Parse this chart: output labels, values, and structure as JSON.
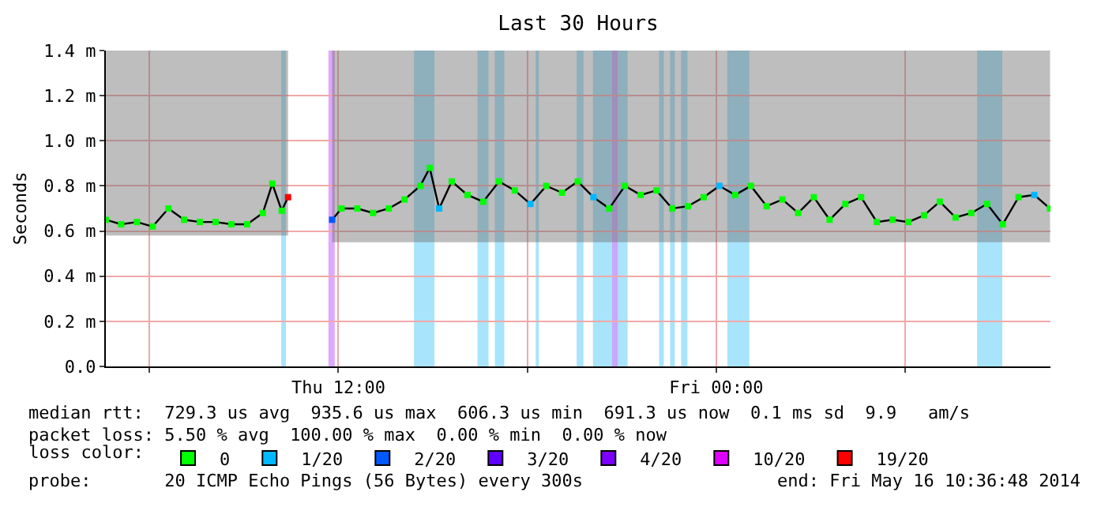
{
  "chart_data": {
    "type": "line",
    "title": "Last 30 Hours",
    "ylabel": "Seconds",
    "x": [
      "2014-05-15T04:37",
      "2014-05-15T05:06",
      "2014-05-15T05:36",
      "2014-05-15T06:06",
      "2014-05-15T06:36",
      "2014-05-15T07:06",
      "2014-05-15T07:36",
      "2014-05-15T08:06",
      "2014-05-15T08:36",
      "2014-05-15T09:06",
      "2014-05-15T09:36",
      "2014-05-15T09:54",
      "2014-05-15T10:12",
      "2014-05-15T10:24",
      "2014-05-15T11:06",
      "2014-05-15T11:48",
      "2014-05-15T12:06",
      "2014-05-15T12:36",
      "2014-05-15T13:06",
      "2014-05-15T13:36",
      "2014-05-15T14:06",
      "2014-05-15T14:36",
      "2014-05-15T14:54",
      "2014-05-15T15:12",
      "2014-05-15T15:36",
      "2014-05-15T16:06",
      "2014-05-15T16:36",
      "2014-05-15T17:06",
      "2014-05-15T17:36",
      "2014-05-15T18:06",
      "2014-05-15T18:36",
      "2014-05-15T19:06",
      "2014-05-15T19:36",
      "2014-05-15T20:06",
      "2014-05-15T20:36",
      "2014-05-15T21:06",
      "2014-05-15T21:36",
      "2014-05-15T22:06",
      "2014-05-15T22:36",
      "2014-05-15T23:06",
      "2014-05-15T23:36",
      "2014-05-16T00:06",
      "2014-05-16T00:36",
      "2014-05-16T01:06",
      "2014-05-16T01:36",
      "2014-05-16T02:06",
      "2014-05-16T02:36",
      "2014-05-16T03:06",
      "2014-05-16T03:36",
      "2014-05-16T04:06",
      "2014-05-16T04:36",
      "2014-05-16T05:06",
      "2014-05-16T05:36",
      "2014-05-16T06:06",
      "2014-05-16T06:36",
      "2014-05-16T07:06",
      "2014-05-16T07:36",
      "2014-05-16T08:06",
      "2014-05-16T08:36",
      "2014-05-16T09:06",
      "2014-05-16T09:36",
      "2014-05-16T10:06",
      "2014-05-16T10:36"
    ],
    "series": [
      {
        "color": "#000000",
        "values": [
          0.65,
          0.63,
          0.64,
          0.62,
          0.7,
          0.65,
          0.64,
          0.64,
          0.63,
          0.63,
          0.68,
          0.81,
          0.69,
          0.75,
          null,
          0.65,
          0.7,
          0.7,
          0.68,
          0.7,
          0.74,
          0.8,
          0.88,
          0.7,
          0.82,
          0.76,
          0.73,
          0.82,
          0.78,
          0.72,
          0.8,
          0.77,
          0.82,
          0.75,
          0.7,
          0.8,
          0.76,
          0.78,
          0.7,
          0.71,
          0.75,
          0.8,
          0.76,
          0.8,
          0.71,
          0.74,
          0.68,
          0.75,
          0.65,
          0.72,
          0.75,
          0.64,
          0.65,
          0.64,
          0.67,
          0.73,
          0.66,
          0.68,
          0.72,
          0.63,
          0.75,
          0.76,
          0.7
        ],
        "colors": [
          "#00ff00",
          "#00ff00",
          "#00ff00",
          "#00ff00",
          "#00ff00",
          "#00ff00",
          "#00ff00",
          "#00ff00",
          "#00ff00",
          "#00ff00",
          "#00ff00",
          "#00ff00",
          "#00ff00",
          "#ff0000",
          null,
          "#0059ff",
          "#00ff00",
          "#00ff00",
          "#00ff00",
          "#00ff00",
          "#00ff00",
          "#00ff00",
          "#00ff00",
          "#00b8ff",
          "#00ff00",
          "#00ff00",
          "#00ff00",
          "#00ff00",
          "#00ff00",
          "#00b8ff",
          "#00ff00",
          "#00ff00",
          "#00ff00",
          "#00b8ff",
          "#00ff00",
          "#00ff00",
          "#00ff00",
          "#00ff00",
          "#00ff00",
          "#00ff00",
          "#00ff00",
          "#00b8ff",
          "#00ff00",
          "#00ff00",
          "#00ff00",
          "#00ff00",
          "#00ff00",
          "#00ff00",
          "#00ff00",
          "#00ff00",
          "#00ff00",
          "#00ff00",
          "#00ff00",
          "#00ff00",
          "#00ff00",
          "#00ff00",
          "#00ff00",
          "#00ff00",
          "#00ff00",
          "#00ff00",
          "#00ff00",
          "#00b8ff",
          "#00ff00"
        ],
        "lower": [
          0.58,
          0.58,
          0.58,
          0.58,
          0.58,
          0.58,
          0.58,
          0.58,
          0.58,
          0.58,
          0.58,
          0.58,
          0.58,
          0.58,
          null,
          0.55,
          0.55,
          0.55,
          0.55,
          0.55,
          0.55,
          0.55,
          0.55,
          0.55,
          0.55,
          0.55,
          0.55,
          0.55,
          0.55,
          0.55,
          0.55,
          0.55,
          0.55,
          0.55,
          0.55,
          0.55,
          0.55,
          0.55,
          0.55,
          0.55,
          0.55,
          0.55,
          0.55,
          0.55,
          0.55,
          0.55,
          0.55,
          0.55,
          0.55,
          0.55,
          0.55,
          0.55,
          0.55,
          0.55,
          0.55,
          0.55,
          0.55,
          0.55,
          0.55,
          0.55,
          0.55,
          0.55,
          0.55
        ],
        "upper": [
          1.4,
          1.4,
          1.4,
          1.4,
          1.4,
          1.4,
          1.4,
          1.4,
          1.4,
          1.4,
          1.4,
          1.4,
          1.4,
          1.4,
          null,
          1.4,
          1.4,
          1.4,
          1.4,
          1.4,
          1.4,
          1.4,
          1.4,
          1.4,
          1.4,
          1.4,
          1.4,
          1.4,
          1.4,
          1.4,
          1.4,
          1.4,
          1.4,
          1.4,
          1.4,
          1.4,
          1.4,
          1.4,
          1.4,
          1.4,
          1.4,
          1.4,
          1.4,
          1.4,
          1.4,
          1.4,
          1.4,
          1.4,
          1.4,
          1.4,
          1.4,
          1.4,
          1.4,
          1.4,
          1.4,
          1.4,
          1.4,
          1.4,
          1.4,
          1.4,
          1.4,
          1.4,
          1.4
        ]
      },
      {
        "type": "scatter",
        "name": "0",
        "color": "#00ff00",
        "values": [
          null,
          null,
          null,
          null,
          null,
          null,
          null,
          null,
          null,
          null,
          null,
          null,
          null,
          null,
          null,
          null,
          null,
          null,
          null,
          null,
          null,
          null,
          null,
          null,
          null,
          null,
          null,
          null,
          null,
          null,
          null,
          null,
          null,
          null,
          null,
          null,
          null,
          null,
          null,
          null,
          null,
          null,
          null,
          null,
          null,
          null,
          null,
          null,
          null,
          null,
          null,
          null,
          null,
          null,
          null,
          null,
          null,
          null,
          null,
          null,
          null,
          null,
          null
        ]
      },
      {
        "type": "scatter",
        "name": "1/20",
        "color": "#00b8ff",
        "values": [
          null,
          null,
          null,
          null,
          null,
          null,
          null,
          null,
          null,
          null,
          null,
          null,
          null,
          null,
          null,
          null,
          null,
          null,
          null,
          null,
          null,
          null,
          null,
          null,
          null,
          null,
          null,
          null,
          null,
          null,
          null,
          null,
          null,
          null,
          null,
          null,
          null,
          null,
          null,
          null,
          null,
          null,
          null,
          null,
          null,
          null,
          null,
          null,
          null,
          null,
          null,
          null,
          null,
          null,
          null,
          null,
          null,
          null,
          null,
          null,
          null,
          null,
          null
        ]
      },
      {
        "type": "scatter",
        "name": "2/20",
        "color": "#0059ff",
        "values": [
          null,
          null,
          null,
          null,
          null,
          null,
          null,
          null,
          null,
          null,
          null,
          null,
          null,
          null,
          null,
          null,
          null,
          null,
          null,
          null,
          null,
          null,
          null,
          null,
          null,
          null,
          null,
          null,
          null,
          null,
          null,
          null,
          null,
          null,
          null,
          null,
          null,
          null,
          null,
          null,
          null,
          null,
          null,
          null,
          null,
          null,
          null,
          null,
          null,
          null,
          null,
          null,
          null,
          null,
          null,
          null,
          null,
          null,
          null,
          null,
          null,
          null,
          null
        ]
      },
      {
        "type": "scatter",
        "name": "3/20",
        "color": "#5e00ff",
        "values": [
          null,
          null,
          null,
          null,
          null,
          null,
          null,
          null,
          null,
          null,
          null,
          null,
          null,
          null,
          null,
          null,
          null,
          null,
          null,
          null,
          null,
          null,
          null,
          null,
          null,
          null,
          null,
          null,
          null,
          null,
          null,
          null,
          null,
          null,
          null,
          null,
          null,
          null,
          null,
          null,
          null,
          null,
          null,
          null,
          null,
          null,
          null,
          null,
          null,
          null,
          null,
          null,
          null,
          null,
          null,
          null,
          null,
          null,
          null,
          null,
          null,
          null,
          null
        ]
      },
      {
        "type": "scatter",
        "name": "4/20",
        "color": "#7e00ff",
        "values": [
          null,
          null,
          null,
          null,
          null,
          null,
          null,
          null,
          null,
          null,
          null,
          null,
          null,
          null,
          null,
          null,
          null,
          null,
          null,
          null,
          null,
          null,
          null,
          null,
          null,
          null,
          null,
          null,
          null,
          null,
          null,
          null,
          null,
          null,
          null,
          null,
          null,
          null,
          null,
          null,
          null,
          null,
          null,
          null,
          null,
          null,
          null,
          null,
          null,
          null,
          null,
          null,
          null,
          null,
          null,
          null,
          null,
          null,
          null,
          null,
          null,
          null,
          null
        ]
      },
      {
        "type": "scatter",
        "name": "10/20",
        "color": "#dd00ff",
        "values": [
          null,
          null,
          null,
          null,
          null,
          null,
          null,
          null,
          null,
          null,
          null,
          null,
          null,
          null,
          null,
          null,
          null,
          null,
          null,
          null,
          null,
          null,
          null,
          null,
          null,
          null,
          null,
          null,
          null,
          null,
          null,
          null,
          null,
          null,
          null,
          null,
          null,
          null,
          null,
          null,
          null,
          null,
          null,
          null,
          null,
          null,
          null,
          null,
          null,
          null,
          null,
          null,
          null,
          null,
          null,
          null,
          null,
          null,
          null,
          null,
          null,
          null,
          null
        ]
      },
      {
        "type": "scatter",
        "name": "19/20",
        "color": "#ff0000",
        "values": [
          null,
          null,
          null,
          null,
          null,
          null,
          null,
          null,
          null,
          null,
          null,
          null,
          null,
          null,
          null,
          null,
          null,
          null,
          null,
          null,
          null,
          null,
          null,
          null,
          null,
          null,
          null,
          null,
          null,
          null,
          null,
          null,
          null,
          null,
          null,
          null,
          null,
          null,
          null,
          null,
          null,
          null,
          null,
          null,
          null,
          null,
          null,
          null,
          null,
          null,
          null,
          null,
          null,
          null,
          null,
          null,
          null,
          null,
          null,
          null,
          null,
          null,
          null
        ]
      }
    ],
    "legend_title": "loss color:",
    "marker": "square",
    "legend": "bottom",
    "grid": true,
    "xlim": [
      "2014-05-15T04:36:48",
      "2014-05-16T10:36:48"
    ],
    "xticks": [
      {
        "value": "2014-05-15T06:00",
        "label": null
      },
      {
        "value": "2014-05-15T12:00",
        "label": "Thu 12:00"
      },
      {
        "value": "2014-05-15T18:00",
        "label": null
      },
      {
        "value": "2014-05-16T00:00",
        "label": "Fri 00:00"
      },
      {
        "value": "2014-05-16T06:00",
        "label": null
      }
    ],
    "ylim": [
      0,
      1.4
    ],
    "yticks": [
      {
        "value": 0,
        "label": "0.0"
      },
      {
        "value": 0.2,
        "label": "0.2 m"
      },
      {
        "value": 0.4,
        "label": "0.4 m"
      },
      {
        "value": 0.6,
        "label": "0.6 m"
      },
      {
        "value": 0.8,
        "label": "0.8 m"
      },
      {
        "value": 1.0,
        "label": "1.0 m"
      },
      {
        "value": 1.2,
        "label": "1.2 m"
      },
      {
        "value": 1.4,
        "label": "1.4 m"
      }
    ],
    "bands": [
      {
        "axis": "x",
        "from": "2014-05-15T10:11",
        "to": "2014-05-15T10:20",
        "color": "#a8e4fc"
      },
      {
        "axis": "x",
        "from": "2014-05-15T11:41",
        "to": "2014-05-15T11:53",
        "color": "#e0a8fc"
      },
      {
        "axis": "x",
        "from": "2014-05-15T14:24",
        "to": "2014-05-15T15:03",
        "color": "#a8e4fc"
      },
      {
        "axis": "x",
        "from": "2014-05-15T16:25",
        "to": "2014-05-15T16:46",
        "color": "#a8e4fc"
      },
      {
        "axis": "x",
        "from": "2014-05-15T16:58",
        "to": "2014-05-15T17:16",
        "color": "#a8e4fc"
      },
      {
        "axis": "x",
        "from": "2014-05-15T18:16",
        "to": "2014-05-15T18:22",
        "color": "#a8e4fc"
      },
      {
        "axis": "x",
        "from": "2014-05-15T19:34",
        "to": "2014-05-15T19:47",
        "color": "#a8e4fc"
      },
      {
        "axis": "x",
        "from": "2014-05-15T20:05",
        "to": "2014-05-15T20:41",
        "color": "#a8e4fc"
      },
      {
        "axis": "x",
        "from": "2014-05-15T20:41",
        "to": "2014-05-15T20:53",
        "color": "#c8a8fc"
      },
      {
        "axis": "x",
        "from": "2014-05-15T20:53",
        "to": "2014-05-15T21:11",
        "color": "#a8e4fc"
      },
      {
        "axis": "x",
        "from": "2014-05-15T22:11",
        "to": "2014-05-15T22:20",
        "color": "#a8e4fc"
      },
      {
        "axis": "x",
        "from": "2014-05-15T22:32",
        "to": "2014-05-15T22:41",
        "color": "#a8e4fc"
      },
      {
        "axis": "x",
        "from": "2014-05-15T22:53",
        "to": "2014-05-15T23:05",
        "color": "#a8e4fc"
      },
      {
        "axis": "x",
        "from": "2014-05-16T00:21",
        "to": "2014-05-16T01:03",
        "color": "#a8e4fc"
      },
      {
        "axis": "x",
        "from": "2014-05-16T08:17",
        "to": "2014-05-16T09:05",
        "color": "#a8e4fc"
      }
    ],
    "annotations": [
      "median rtt:  729.3 us avg  935.6 us max  606.3 us min  691.3 us now  0.1 ms sd  9.9   am/s",
      "packet loss: 5.50 % avg  100.00 % max  0.00 % min  0.00 % now",
      "probe:       20 ICMP Echo Pings (56 Bytes) every 300s",
      "end: Fri May 16 10:36:48 2014"
    ]
  }
}
